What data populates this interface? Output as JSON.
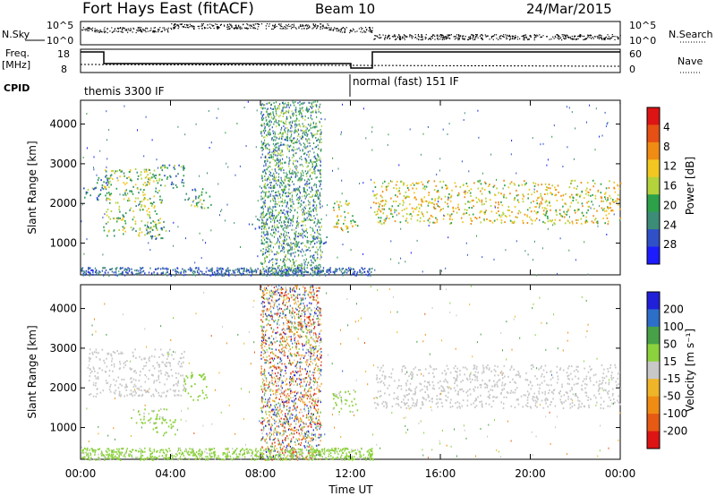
{
  "header": {
    "title": "Fort Hays East (fitACF)",
    "beam": "Beam 10",
    "date": "24/Mar/2015"
  },
  "top_strip": {
    "nsky_label": "N.Sky",
    "nsky_ticks": [
      "10^5",
      "10^0"
    ],
    "nsearch_label": "N.Search",
    "nsearch_ticks": [
      "10^5",
      "10^0"
    ],
    "freq_label_1": "Freq.",
    "freq_label_2": "[MHz]",
    "freq_ticks": [
      "18",
      "8"
    ],
    "nave_label": "Nave",
    "nave_ticks": [
      "60",
      "0"
    ],
    "cpid_label": "CPID",
    "cpid_segments": [
      {
        "label": "themis 3300 IF",
        "start": 0,
        "end": 12.0
      },
      {
        "label": "normal (fast) 151 IF",
        "start": 12.0,
        "end": 24
      }
    ]
  },
  "colors": {
    "power": [
      "#1c1cff",
      "#3050c8",
      "#3c8c78",
      "#2ca14a",
      "#b4d23c",
      "#f2c820",
      "#f08c14",
      "#e65014",
      "#dc1414"
    ],
    "velocity": [
      "#2020d8",
      "#2c6ec8",
      "#48a048",
      "#8cd23c",
      "#c8c8c8",
      "#f0b428",
      "#f08c14",
      "#e65a14",
      "#dc1414"
    ]
  },
  "chart_data": [
    {
      "type": "heatmap",
      "title": "",
      "xlabel": "",
      "ylabel": "Slant Range [km]",
      "x_ticks": [
        "00:00",
        "04:00",
        "08:00",
        "12:00",
        "16:00",
        "20:00",
        "00:00"
      ],
      "xlim_hours": [
        0,
        24
      ],
      "y_ticks": [
        "1000",
        "2000",
        "3000",
        "4000"
      ],
      "ylim": [
        200,
        4600
      ],
      "colorbar_label": "Power [dB]",
      "colorbar_ticks": [
        "4",
        "8",
        "12",
        "16",
        "20",
        "24",
        "28"
      ],
      "colorbar_range": [
        0,
        30
      ],
      "regions": [
        {
          "t0": 0.1,
          "t1": 1.3,
          "r0": 2100,
          "r1": 2700,
          "level": 8
        },
        {
          "t0": 1.0,
          "t1": 3.6,
          "r0": 1200,
          "r1": 2900,
          "level": 14
        },
        {
          "t0": 3.4,
          "t1": 4.6,
          "r0": 2400,
          "r1": 3000,
          "level": 10
        },
        {
          "t0": 4.6,
          "t1": 5.8,
          "r0": 1900,
          "r1": 2400,
          "level": 12
        },
        {
          "t0": 2.8,
          "t1": 3.8,
          "r0": 1100,
          "r1": 1600,
          "level": 10
        },
        {
          "t0": 7.6,
          "t1": 8.3,
          "r0": 1300,
          "r1": 1700,
          "level": 9
        },
        {
          "t0": 9.5,
          "t1": 11.0,
          "r0": 1000,
          "r1": 1200,
          "level": 8
        },
        {
          "t0": 11.2,
          "t1": 12.3,
          "r0": 1300,
          "r1": 2100,
          "level": 16
        },
        {
          "t0": 13.0,
          "t1": 24.0,
          "r0": 1500,
          "r1": 2600,
          "level": 17
        }
      ],
      "noise_band": {
        "t0": 8.0,
        "t1": 10.7,
        "level": 12
      }
    },
    {
      "type": "heatmap",
      "title": "",
      "xlabel": "Time UT",
      "ylabel": "Slant Range [km]",
      "x_ticks": [
        "00:00",
        "04:00",
        "08:00",
        "12:00",
        "16:00",
        "20:00",
        "00:00"
      ],
      "xlim_hours": [
        0,
        24
      ],
      "y_ticks": [
        "1000",
        "2000",
        "3000",
        "4000"
      ],
      "ylim": [
        200,
        4600
      ],
      "colorbar_label": "Velocity [m s⁻¹]",
      "colorbar_ticks": [
        "200",
        "100",
        "50",
        "15",
        "-15",
        "-50",
        "-100",
        "-200"
      ],
      "colorbar_range": [
        -250,
        250
      ],
      "regions": [
        {
          "t0": 0.3,
          "t1": 4.6,
          "r0": 1800,
          "r1": 3000,
          "level": 0
        },
        {
          "t0": 2.2,
          "t1": 3.8,
          "r0": 1100,
          "r1": 1500,
          "level": 40
        },
        {
          "t0": 4.6,
          "t1": 5.6,
          "r0": 1700,
          "r1": 2400,
          "level": 60
        },
        {
          "t0": 3.2,
          "t1": 4.2,
          "r0": 800,
          "r1": 1300,
          "level": 45
        },
        {
          "t0": 11.2,
          "t1": 12.3,
          "r0": 1400,
          "r1": 2000,
          "level": 40
        },
        {
          "t0": 13.0,
          "t1": 24.0,
          "r0": 1500,
          "r1": 2600,
          "level": 0
        }
      ],
      "noise_band": {
        "t0": 8.0,
        "t1": 10.7,
        "level": 0
      },
      "ground_band": {
        "t0": 0.0,
        "t1": 13.0,
        "r0": 200,
        "r1": 500,
        "level": 40
      }
    }
  ]
}
